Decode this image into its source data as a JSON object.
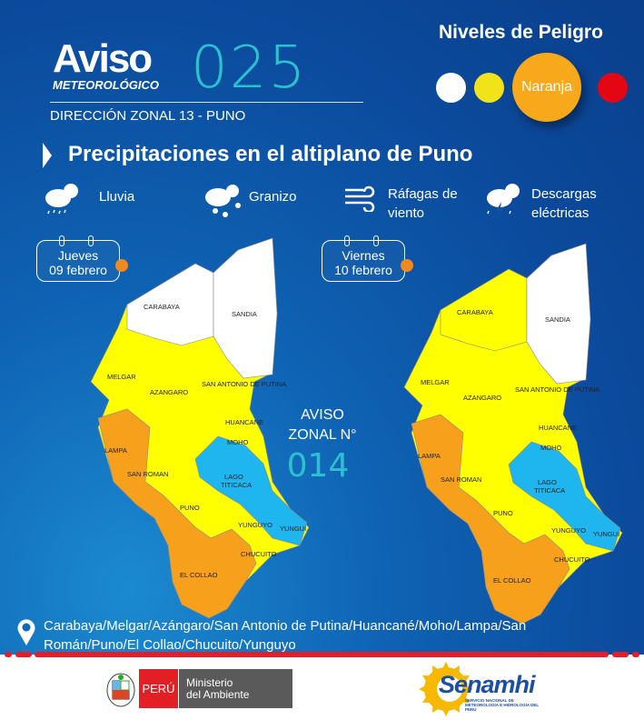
{
  "header": {
    "aviso": "Aviso",
    "meteorologico": "METEOROLÓGICO",
    "number": "025",
    "direccion": "DIRECCIÓN ZONAL 13 - PUNO"
  },
  "levels": {
    "title": "Niveles de Peligro",
    "active": "Naranja",
    "colors": {
      "white": "#ffffff",
      "yellow": "#f2e21a",
      "orange": "#f7a81b",
      "red": "#e30613"
    }
  },
  "title": "Precipitaciones en el altiplano de Puno",
  "hazards": [
    {
      "icon": "rain-cloud-icon",
      "label": "Lluvia"
    },
    {
      "icon": "hail-cloud-icon",
      "label": "Granizo"
    },
    {
      "icon": "wind-gust-icon",
      "label": "Ráfagas de viento"
    },
    {
      "icon": "thunderstorm-cloud-icon",
      "label": "Descargas eléctricas"
    }
  ],
  "maps": [
    {
      "day": "Jueves",
      "date": "09 febrero",
      "fills": {
        "carabaya": "#ffffff",
        "sandia": "#ffffff",
        "yellow": "#ffff00",
        "orange": "#f7a01c",
        "lake": "#1fb5ee"
      }
    },
    {
      "day": "Viernes",
      "date": "10 febrero",
      "fills": {
        "carabaya": "#ffff00",
        "sandia": "#ffffff",
        "yellow": "#ffff00",
        "orange": "#f7a01c",
        "lake": "#1fb5ee"
      }
    }
  ],
  "map_labels": {
    "carabaya": "CARABAYA",
    "sandia": "SANDIA",
    "melgar": "MELGAR",
    "san_antonio": "SAN ANTONIO DE PUTINA",
    "azangaro": "AZANGARO",
    "huancane": "HUANCANE",
    "moho": "MOHO",
    "lampa": "LAMPA",
    "san_roman": "SAN ROMAN",
    "lago": "LAGO",
    "titicaca": "TITICACA",
    "puno": "PUNO",
    "yunguyo": "YUNGUYO",
    "yungui": "YUNGUI",
    "chucuito": "CHUCUITO",
    "el_collao": "EL COLLAO"
  },
  "aviso_zonal": {
    "label": "AVISO ZONAL N°",
    "number": "014"
  },
  "locations": "Carabaya/Melgar/Azángaro/San Antonio de Putina/Huancané/Moho/Lampa/San Román/Puno/El Collao/Chucuito/Yunguyo",
  "footer": {
    "peru": "PERÚ",
    "ministerio": "Ministerio",
    "ambiente": "del Ambiente",
    "senamhi": "Senamhi",
    "senamhi_sub": "SERVICIO NACIONAL DE METEOROLOGÍA E HIDROLOGÍA DEL PERÚ"
  }
}
